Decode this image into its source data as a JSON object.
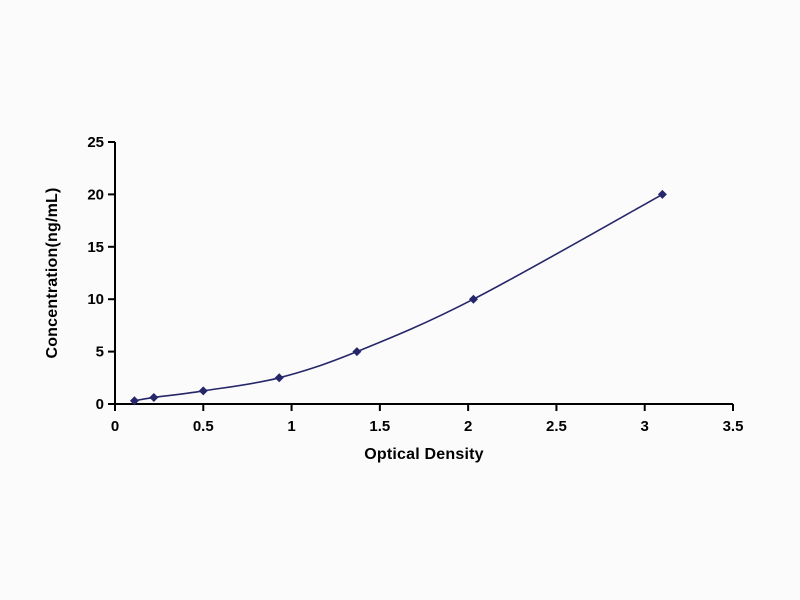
{
  "chart_data": {
    "type": "line",
    "title": "",
    "xlabel": "Optical Density",
    "ylabel": "Concentration(ng/mL)",
    "x": [
      0.11,
      0.22,
      0.5,
      0.93,
      1.37,
      2.03,
      3.1
    ],
    "y": [
      0.312,
      0.625,
      1.25,
      2.5,
      5,
      10,
      20
    ],
    "xlim": [
      0,
      3.5
    ],
    "ylim": [
      0,
      25
    ],
    "xticks": [
      0,
      0.5,
      1,
      1.5,
      2,
      2.5,
      3,
      3.5
    ],
    "yticks": [
      0,
      5,
      10,
      15,
      20,
      25
    ],
    "grid": false,
    "legend": "none",
    "marker": "diamond",
    "line_color": "#26266a",
    "axis_color": "#000000",
    "background": "#fbfbfb"
  }
}
